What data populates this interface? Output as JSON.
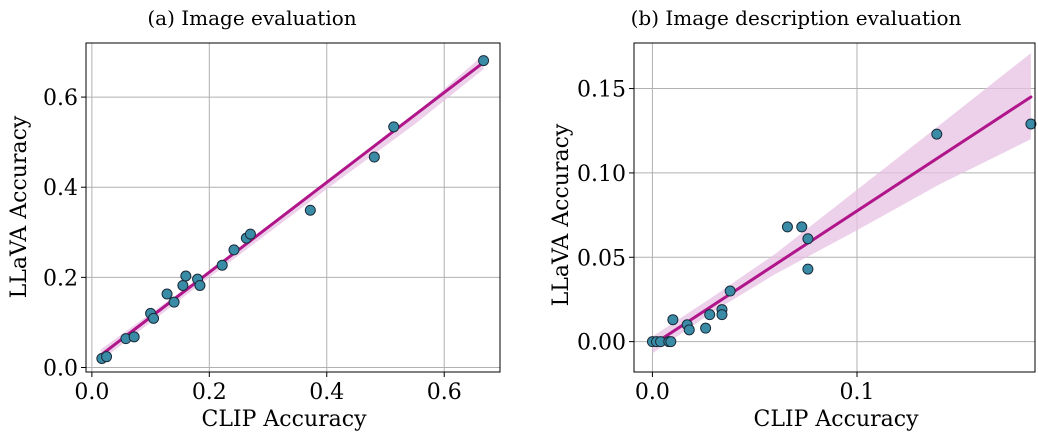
{
  "chart_data": [
    {
      "type": "scatter",
      "title": "(a) Image evaluation",
      "xlabel": "CLIP Accuracy",
      "ylabel": "LLaVA Accuracy",
      "xlim": [
        -0.01,
        0.695
      ],
      "ylim": [
        -0.01,
        0.72
      ],
      "xticks": [
        0.0,
        0.2,
        0.4,
        0.6
      ],
      "xtick_labels": [
        "0.0",
        "0.2",
        "0.4",
        "0.6"
      ],
      "yticks": [
        0.0,
        0.2,
        0.4,
        0.6
      ],
      "ytick_labels": [
        "0.0",
        "0.2",
        "0.4",
        "0.6"
      ],
      "grid": true,
      "points": [
        {
          "x": 0.017,
          "y": 0.02
        },
        {
          "x": 0.025,
          "y": 0.024
        },
        {
          "x": 0.058,
          "y": 0.064
        },
        {
          "x": 0.072,
          "y": 0.068
        },
        {
          "x": 0.1,
          "y": 0.12
        },
        {
          "x": 0.105,
          "y": 0.109
        },
        {
          "x": 0.128,
          "y": 0.163
        },
        {
          "x": 0.14,
          "y": 0.145
        },
        {
          "x": 0.155,
          "y": 0.182
        },
        {
          "x": 0.16,
          "y": 0.203
        },
        {
          "x": 0.18,
          "y": 0.196
        },
        {
          "x": 0.184,
          "y": 0.182
        },
        {
          "x": 0.222,
          "y": 0.227
        },
        {
          "x": 0.242,
          "y": 0.261
        },
        {
          "x": 0.263,
          "y": 0.287
        },
        {
          "x": 0.27,
          "y": 0.296
        },
        {
          "x": 0.372,
          "y": 0.349
        },
        {
          "x": 0.481,
          "y": 0.467
        },
        {
          "x": 0.514,
          "y": 0.534
        },
        {
          "x": 0.667,
          "y": 0.681
        }
      ],
      "fit_line": {
        "x": [
          0.015,
          0.667
        ],
        "y": [
          0.027,
          0.677
        ]
      },
      "ci_band": {
        "x": [
          0.015,
          0.2,
          0.4,
          0.55,
          0.667
        ],
        "lower": [
          0.015,
          0.2,
          0.396,
          0.54,
          0.662
        ],
        "upper": [
          0.04,
          0.214,
          0.41,
          0.562,
          0.694
        ]
      },
      "colors": {
        "point": "#3a8ca6",
        "line": "#b0158a",
        "band": "#e7c2e3"
      }
    },
    {
      "type": "scatter",
      "title": "(b) Image description evaluation",
      "xlabel": "CLIP Accuracy",
      "ylabel": "LLaVA Accuracy",
      "xlim": [
        -0.009,
        0.187
      ],
      "ylim": [
        -0.018,
        0.177
      ],
      "xticks": [
        0.0,
        0.1
      ],
      "xtick_labels": [
        "0.0",
        "0.1"
      ],
      "yticks": [
        0.0,
        0.05,
        0.1,
        0.15
      ],
      "ytick_labels": [
        "0.00",
        "0.05",
        "0.10",
        "0.15"
      ],
      "grid": true,
      "points": [
        {
          "x": 0.0,
          "y": 0.0
        },
        {
          "x": 0.002,
          "y": 0.0
        },
        {
          "x": 0.004,
          "y": 0.0
        },
        {
          "x": 0.008,
          "y": 0.0
        },
        {
          "x": 0.009,
          "y": 0.0
        },
        {
          "x": 0.01,
          "y": 0.013
        },
        {
          "x": 0.017,
          "y": 0.01
        },
        {
          "x": 0.018,
          "y": 0.007
        },
        {
          "x": 0.026,
          "y": 0.008
        },
        {
          "x": 0.028,
          "y": 0.016
        },
        {
          "x": 0.034,
          "y": 0.019
        },
        {
          "x": 0.034,
          "y": 0.016
        },
        {
          "x": 0.038,
          "y": 0.03
        },
        {
          "x": 0.066,
          "y": 0.068
        },
        {
          "x": 0.073,
          "y": 0.068
        },
        {
          "x": 0.076,
          "y": 0.061
        },
        {
          "x": 0.076,
          "y": 0.043
        },
        {
          "x": 0.139,
          "y": 0.123
        },
        {
          "x": 0.185,
          "y": 0.129
        }
      ],
      "fit_line": {
        "x": [
          0.0,
          0.185
        ],
        "y": [
          -0.002,
          0.145
        ]
      },
      "ci_band": {
        "x": [
          0.0,
          0.03,
          0.06,
          0.1,
          0.14,
          0.185
        ],
        "lower": [
          -0.007,
          0.018,
          0.04,
          0.066,
          0.093,
          0.12
        ],
        "upper": [
          0.003,
          0.027,
          0.052,
          0.09,
          0.128,
          0.171
        ]
      },
      "colors": {
        "point": "#3a8ca6",
        "line": "#b0158a",
        "band": "#e7c2e3"
      }
    }
  ]
}
